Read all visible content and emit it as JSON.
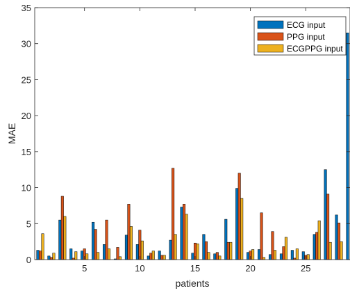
{
  "chart_data": {
    "type": "bar",
    "title": "",
    "xlabel": "patients",
    "ylabel": "MAE",
    "xlim": [
      0.5,
      29
    ],
    "ylim": [
      0,
      35
    ],
    "xticks": [
      "5",
      "10",
      "15",
      "20",
      "25"
    ],
    "xtick_values": [
      5,
      10,
      15,
      20,
      25
    ],
    "yticks": [
      "0",
      "5",
      "10",
      "15",
      "20",
      "25",
      "30",
      "35"
    ],
    "ytick_values": [
      0,
      5,
      10,
      15,
      20,
      25,
      30,
      35
    ],
    "grid": false,
    "legend_position": "top-right",
    "categories": [
      1,
      2,
      3,
      4,
      5,
      6,
      7,
      8,
      9,
      10,
      11,
      12,
      13,
      14,
      15,
      16,
      17,
      18,
      19,
      20,
      21,
      22,
      23,
      24,
      25,
      26,
      27,
      28,
      29
    ],
    "series": [
      {
        "name": "ECG input",
        "color": "#0072BD",
        "values": [
          1.3,
          0.5,
          5.5,
          1.5,
          1.2,
          5.2,
          2.1,
          0.1,
          3.4,
          2.1,
          0.5,
          1.2,
          2.7,
          7.3,
          0.9,
          3.5,
          0.8,
          5.6,
          9.9,
          1.0,
          1.4,
          0.7,
          0.8,
          1.3,
          1.1,
          3.5,
          12.5,
          6.2,
          31.5
        ]
      },
      {
        "name": "PPG input",
        "color": "#D95319",
        "values": [
          1.2,
          0.3,
          8.8,
          0.2,
          1.5,
          4.2,
          5.5,
          1.7,
          7.7,
          4.1,
          0.9,
          0.6,
          12.7,
          7.7,
          2.3,
          2.5,
          1.0,
          2.4,
          12.0,
          1.2,
          6.5,
          3.9,
          1.8,
          0.2,
          0.6,
          3.8,
          9.1,
          5.1,
          0
        ]
      },
      {
        "name": "ECGPPG input",
        "color": "#EDB120",
        "values": [
          3.6,
          0.9,
          6.0,
          1.1,
          0.8,
          1.0,
          1.5,
          0.4,
          4.6,
          2.6,
          1.2,
          0.6,
          3.5,
          6.3,
          2.2,
          1.0,
          0.5,
          2.4,
          8.5,
          1.4,
          0.3,
          1.3,
          3.1,
          1.5,
          0.7,
          5.4,
          2.4,
          2.5,
          0
        ]
      }
    ]
  }
}
